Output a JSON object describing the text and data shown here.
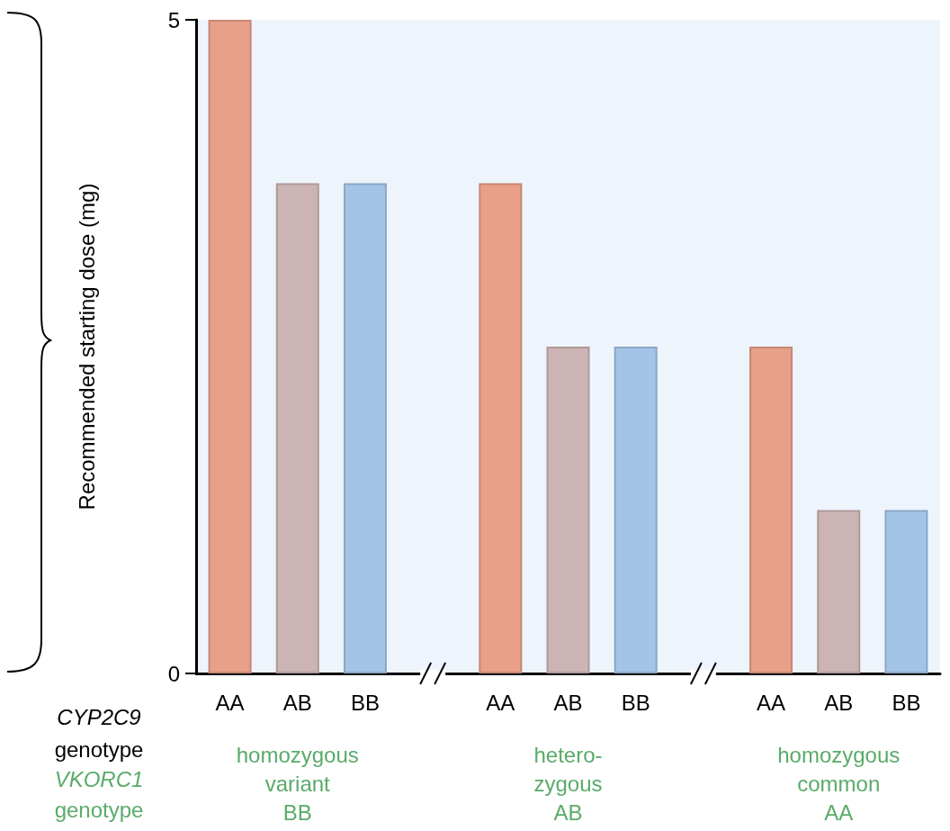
{
  "chart_data": {
    "type": "bar",
    "ylabel": "Recommended starting dose (mg)",
    "xlabel": "CYP2C9 genotype",
    "categories": [
      "AA",
      "AB",
      "BB",
      null,
      "AA",
      "AB",
      "BB",
      null,
      "AA",
      "AB",
      "BB"
    ],
    "values": [
      5,
      3.75,
      3.75,
      null,
      3.75,
      2.5,
      2.5,
      null,
      2.5,
      1.25,
      1.25
    ],
    "colors": [
      "#e8a088",
      "#cdb4b4",
      "#a3c4e6",
      "#ffffff",
      "#e8a088",
      "#cdb4b4",
      "#a3c4e6",
      "#ffffff",
      "#e8a088",
      "#cdb4b4",
      "#a3c4e6"
    ],
    "ylim": [
      0,
      5
    ],
    "yticks": [
      0,
      5
    ],
    "annotations": [
      "homozygous\nvariant\nBB",
      "hetero-\nzygous\nAB",
      "homozygous\ncommon\nAA",
      "VKORC1 genotype"
    ]
  }
}
